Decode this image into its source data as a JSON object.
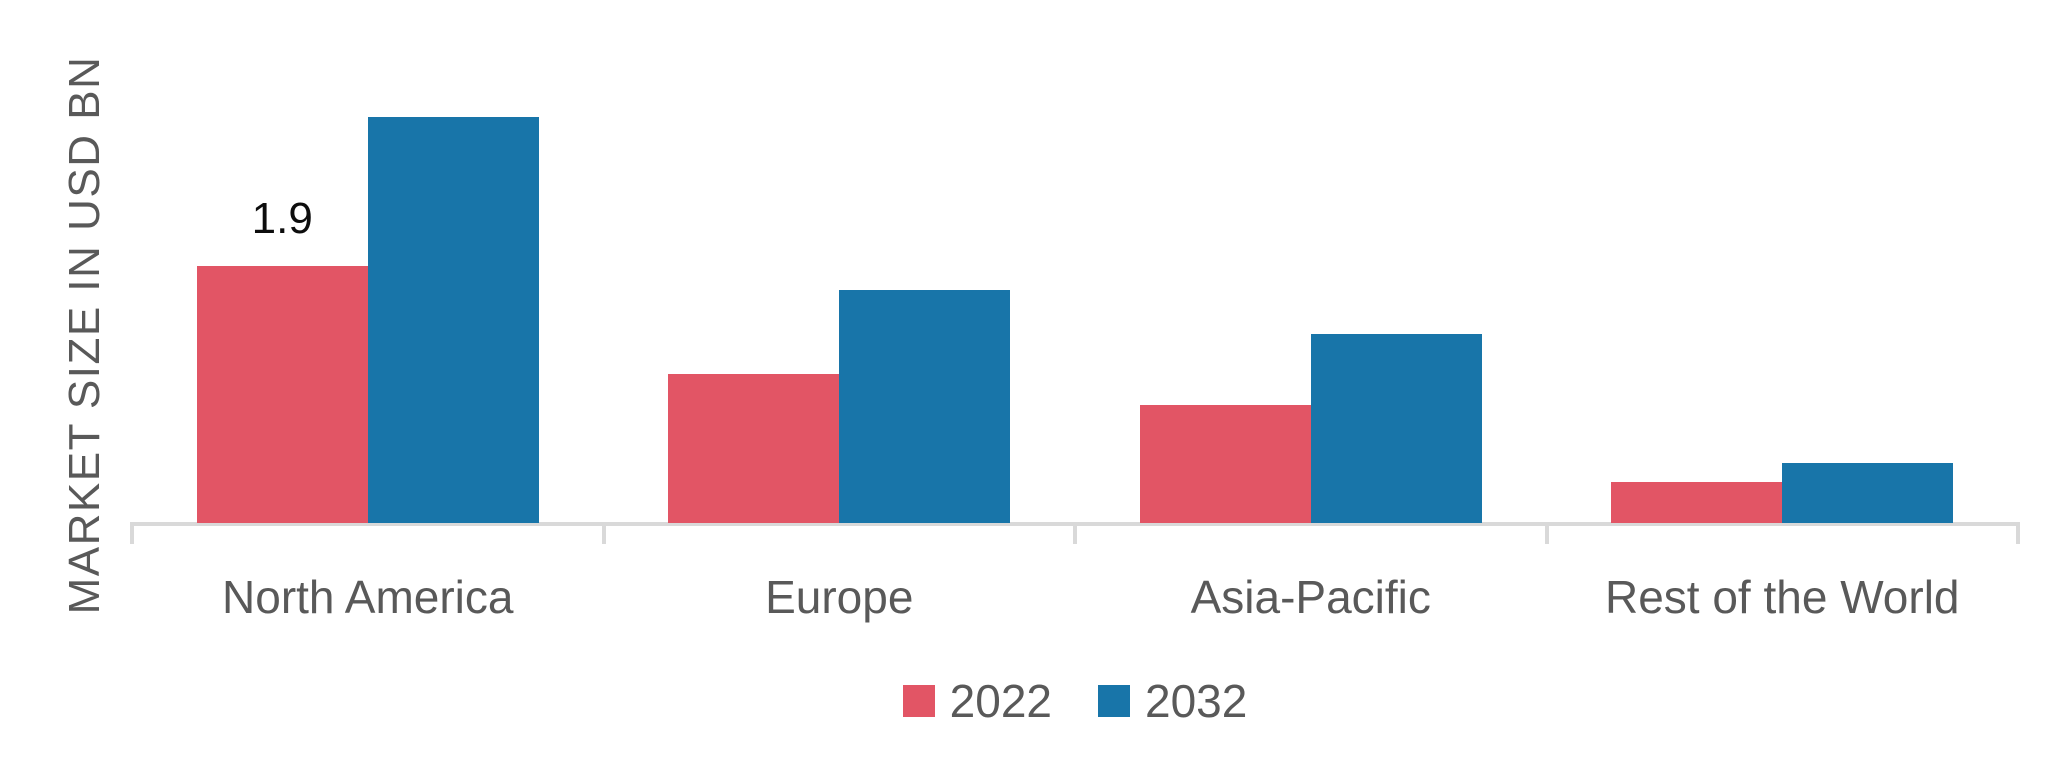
{
  "chart_data": {
    "type": "bar",
    "categories": [
      "North America",
      "Europe",
      "Asia-Pacific",
      "Rest of the World"
    ],
    "series": [
      {
        "name": "2022",
        "color": "#e25565",
        "values": [
          1.9,
          1.1,
          0.87,
          0.3
        ],
        "data_labels": [
          "1.9",
          null,
          null,
          null
        ]
      },
      {
        "name": "2032",
        "color": "#1875a9",
        "values": [
          3.0,
          1.72,
          1.4,
          0.44
        ],
        "data_labels": [
          null,
          null,
          null,
          null
        ]
      }
    ],
    "title": "",
    "xlabel": "",
    "ylabel": "MARKET SIZE IN USD BN",
    "ylim": [
      0,
      3.2
    ],
    "grid": false,
    "y_axis_tick_labels_visible": false,
    "legend_position": "bottom",
    "colors": {
      "axis": "#d9d9d9",
      "axis_text": "#595959",
      "data_label_text": "#0d0d0d",
      "background": "#ffffff"
    }
  }
}
